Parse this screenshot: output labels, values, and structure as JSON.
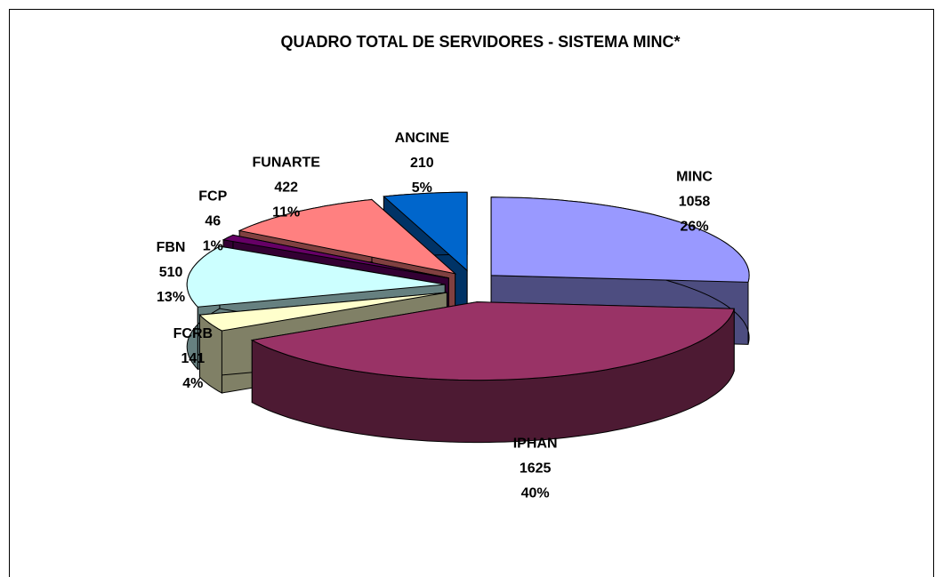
{
  "chart_data": {
    "type": "pie3d",
    "title": "QUADRO TOTAL DE SERVIDORES - SISTEMA MINC*",
    "categories": [
      "MINC",
      "IPHAN",
      "FCRB",
      "FBN",
      "FCP",
      "FUNARTE",
      "ANCINE"
    ],
    "values": [
      1058,
      1625,
      141,
      510,
      46,
      422,
      210
    ],
    "percent_labels": [
      "26%",
      "40%",
      "4%",
      "13%",
      "1%",
      "11%",
      "5%"
    ],
    "colors": [
      "#9999ff",
      "#993366",
      "#ffffcc",
      "#ccffff",
      "#660066",
      "#ff8080",
      "#0066cc"
    ]
  }
}
